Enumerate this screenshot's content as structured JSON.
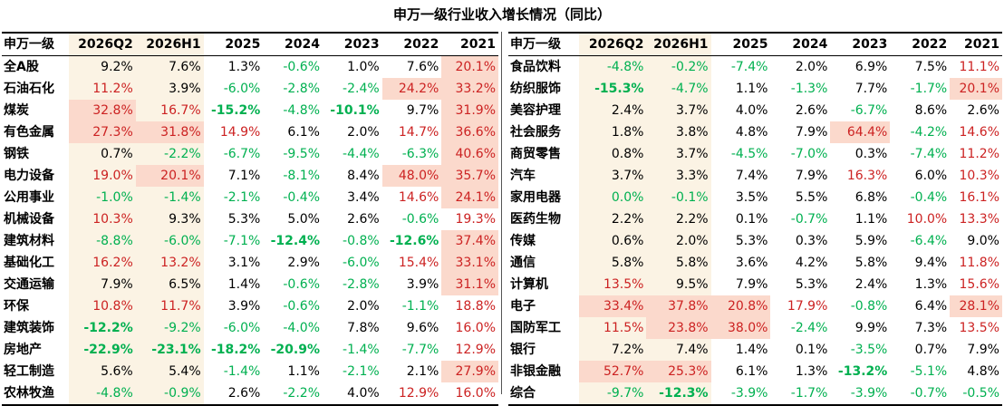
{
  "title": "申万一级行业收入增长情况（同比）",
  "headers": [
    "申万一级",
    "2026Q2",
    "2026H1",
    "2025",
    "2024",
    "2023",
    "2022",
    "2021"
  ],
  "left_rows": [
    {
      "name": "全A股",
      "vals": [
        "9.2%",
        "7.6%",
        "1.3%",
        "-0.6%",
        "1.0%",
        "7.6%",
        "20.1%"
      ],
      "colors": [
        "k",
        "k",
        "k",
        "g",
        "k",
        "k",
        "r"
      ],
      "bold": [
        0,
        0,
        0,
        0,
        0,
        0,
        0
      ],
      "hl": [
        0,
        0,
        0,
        0,
        0,
        0,
        1
      ]
    },
    {
      "name": "石油石化",
      "vals": [
        "11.2%",
        "3.9%",
        "-6.0%",
        "-2.8%",
        "-2.4%",
        "24.2%",
        "33.2%"
      ],
      "colors": [
        "r",
        "k",
        "g",
        "g",
        "g",
        "r",
        "r"
      ],
      "bold": [
        0,
        0,
        0,
        0,
        0,
        0,
        0
      ],
      "hl": [
        0,
        0,
        0,
        0,
        0,
        1,
        1
      ]
    },
    {
      "name": "煤炭",
      "vals": [
        "32.8%",
        "16.7%",
        "-15.2%",
        "-4.8%",
        "-10.1%",
        "9.7%",
        "31.9%"
      ],
      "colors": [
        "r",
        "r",
        "g",
        "g",
        "g",
        "k",
        "r"
      ],
      "bold": [
        0,
        0,
        1,
        0,
        1,
        0,
        0
      ],
      "hl": [
        1,
        0,
        0,
        0,
        0,
        0,
        1
      ]
    },
    {
      "name": "有色金属",
      "vals": [
        "27.3%",
        "31.8%",
        "14.9%",
        "6.1%",
        "2.0%",
        "14.7%",
        "36.6%"
      ],
      "colors": [
        "r",
        "r",
        "r",
        "k",
        "k",
        "r",
        "r"
      ],
      "bold": [
        0,
        0,
        0,
        0,
        0,
        0,
        0
      ],
      "hl": [
        1,
        1,
        0,
        0,
        0,
        0,
        1
      ]
    },
    {
      "name": "钢铁",
      "vals": [
        "0.7%",
        "-2.2%",
        "-6.7%",
        "-9.5%",
        "-4.4%",
        "-6.3%",
        "40.6%"
      ],
      "colors": [
        "k",
        "g",
        "g",
        "g",
        "g",
        "g",
        "r"
      ],
      "bold": [
        0,
        0,
        0,
        0,
        0,
        0,
        0
      ],
      "hl": [
        0,
        0,
        0,
        0,
        0,
        0,
        1
      ]
    },
    {
      "name": "电力设备",
      "vals": [
        "19.0%",
        "20.1%",
        "7.1%",
        "-8.1%",
        "8.4%",
        "48.0%",
        "35.7%"
      ],
      "colors": [
        "r",
        "r",
        "k",
        "g",
        "k",
        "r",
        "r"
      ],
      "bold": [
        0,
        0,
        0,
        0,
        0,
        0,
        0
      ],
      "hl": [
        0,
        1,
        0,
        0,
        0,
        1,
        1
      ]
    },
    {
      "name": "公用事业",
      "vals": [
        "-1.0%",
        "-1.4%",
        "-2.1%",
        "-0.4%",
        "3.4%",
        "14.6%",
        "24.1%"
      ],
      "colors": [
        "g",
        "g",
        "g",
        "g",
        "k",
        "r",
        "r"
      ],
      "bold": [
        0,
        0,
        0,
        0,
        0,
        0,
        0
      ],
      "hl": [
        0,
        0,
        0,
        0,
        0,
        0,
        1
      ]
    },
    {
      "name": "机械设备",
      "vals": [
        "10.3%",
        "9.3%",
        "5.3%",
        "5.0%",
        "2.6%",
        "-0.6%",
        "19.3%"
      ],
      "colors": [
        "r",
        "k",
        "k",
        "k",
        "k",
        "g",
        "r"
      ],
      "bold": [
        0,
        0,
        0,
        0,
        0,
        0,
        0
      ],
      "hl": [
        0,
        0,
        0,
        0,
        0,
        0,
        0
      ]
    },
    {
      "name": "建筑材料",
      "vals": [
        "-8.8%",
        "-6.0%",
        "-7.1%",
        "-12.4%",
        "-0.8%",
        "-12.6%",
        "37.4%"
      ],
      "colors": [
        "g",
        "g",
        "g",
        "g",
        "g",
        "g",
        "r"
      ],
      "bold": [
        0,
        0,
        0,
        1,
        0,
        1,
        0
      ],
      "hl": [
        0,
        0,
        0,
        0,
        0,
        0,
        1
      ]
    },
    {
      "name": "基础化工",
      "vals": [
        "16.2%",
        "13.2%",
        "3.1%",
        "2.9%",
        "-6.0%",
        "15.4%",
        "33.1%"
      ],
      "colors": [
        "r",
        "r",
        "k",
        "k",
        "g",
        "r",
        "r"
      ],
      "bold": [
        0,
        0,
        0,
        0,
        0,
        0,
        0
      ],
      "hl": [
        0,
        0,
        0,
        0,
        0,
        0,
        1
      ]
    },
    {
      "name": "交通运输",
      "vals": [
        "7.9%",
        "6.5%",
        "1.4%",
        "-0.6%",
        "-2.8%",
        "3.9%",
        "31.1%"
      ],
      "colors": [
        "k",
        "k",
        "k",
        "g",
        "g",
        "k",
        "r"
      ],
      "bold": [
        0,
        0,
        0,
        0,
        0,
        0,
        0
      ],
      "hl": [
        0,
        0,
        0,
        0,
        0,
        0,
        1
      ]
    },
    {
      "name": "环保",
      "vals": [
        "10.8%",
        "11.7%",
        "3.9%",
        "-0.6%",
        "2.0%",
        "-1.1%",
        "18.8%"
      ],
      "colors": [
        "r",
        "r",
        "k",
        "g",
        "k",
        "g",
        "r"
      ],
      "bold": [
        0,
        0,
        0,
        0,
        0,
        0,
        0
      ],
      "hl": [
        0,
        0,
        0,
        0,
        0,
        0,
        0
      ]
    },
    {
      "name": "建筑装饰",
      "vals": [
        "-12.2%",
        "-9.2%",
        "-6.0%",
        "-4.0%",
        "7.8%",
        "9.6%",
        "16.0%"
      ],
      "colors": [
        "g",
        "g",
        "g",
        "g",
        "k",
        "k",
        "r"
      ],
      "bold": [
        1,
        0,
        0,
        0,
        0,
        0,
        0
      ],
      "hl": [
        0,
        0,
        0,
        0,
        0,
        0,
        0
      ]
    },
    {
      "name": "房地产",
      "vals": [
        "-22.9%",
        "-23.1%",
        "-18.2%",
        "-20.9%",
        "-1.4%",
        "-7.7%",
        "12.9%"
      ],
      "colors": [
        "g",
        "g",
        "g",
        "g",
        "g",
        "g",
        "r"
      ],
      "bold": [
        1,
        1,
        1,
        1,
        0,
        0,
        0
      ],
      "hl": [
        0,
        0,
        0,
        0,
        0,
        0,
        0
      ]
    },
    {
      "name": "轻工制造",
      "vals": [
        "5.6%",
        "5.4%",
        "-1.4%",
        "1.1%",
        "-2.1%",
        "2.1%",
        "27.9%"
      ],
      "colors": [
        "k",
        "k",
        "g",
        "k",
        "g",
        "k",
        "r"
      ],
      "bold": [
        0,
        0,
        0,
        0,
        0,
        0,
        0
      ],
      "hl": [
        0,
        0,
        0,
        0,
        0,
        0,
        1
      ]
    },
    {
      "name": "农林牧渔",
      "vals": [
        "-4.8%",
        "-0.9%",
        "2.6%",
        "-2.2%",
        "4.0%",
        "12.9%",
        "16.0%"
      ],
      "colors": [
        "g",
        "g",
        "k",
        "g",
        "k",
        "r",
        "r"
      ],
      "bold": [
        0,
        0,
        0,
        0,
        0,
        0,
        0
      ],
      "hl": [
        0,
        0,
        0,
        0,
        0,
        0,
        0
      ]
    }
  ],
  "right_rows": [
    {
      "name": "食品饮料",
      "vals": [
        "-4.8%",
        "-0.2%",
        "-7.4%",
        "2.0%",
        "6.9%",
        "7.5%",
        "11.1%"
      ],
      "colors": [
        "g",
        "g",
        "g",
        "k",
        "k",
        "k",
        "r"
      ],
      "bold": [
        0,
        0,
        0,
        0,
        0,
        0,
        0
      ],
      "hl": [
        0,
        0,
        0,
        0,
        0,
        0,
        0
      ]
    },
    {
      "name": "纺织服饰",
      "vals": [
        "-15.3%",
        "-4.7%",
        "1.1%",
        "-1.3%",
        "7.7%",
        "-1.7%",
        "20.1%"
      ],
      "colors": [
        "g",
        "g",
        "k",
        "g",
        "k",
        "g",
        "r"
      ],
      "bold": [
        1,
        0,
        0,
        0,
        0,
        0,
        0
      ],
      "hl": [
        0,
        0,
        0,
        0,
        0,
        0,
        1
      ]
    },
    {
      "name": "美容护理",
      "vals": [
        "2.4%",
        "3.7%",
        "4.0%",
        "2.6%",
        "-6.7%",
        "8.6%",
        "2.6%"
      ],
      "colors": [
        "k",
        "k",
        "k",
        "k",
        "g",
        "k",
        "k"
      ],
      "bold": [
        0,
        0,
        0,
        0,
        0,
        0,
        0
      ],
      "hl": [
        0,
        0,
        0,
        0,
        0,
        0,
        0
      ]
    },
    {
      "name": "社会服务",
      "vals": [
        "1.8%",
        "3.8%",
        "4.8%",
        "7.9%",
        "64.4%",
        "-4.2%",
        "14.6%"
      ],
      "colors": [
        "k",
        "k",
        "k",
        "k",
        "r",
        "g",
        "r"
      ],
      "bold": [
        0,
        0,
        0,
        0,
        0,
        0,
        0
      ],
      "hl": [
        0,
        0,
        0,
        0,
        1,
        0,
        0
      ]
    },
    {
      "name": "商贸零售",
      "vals": [
        "0.8%",
        "3.7%",
        "-4.5%",
        "-7.0%",
        "0.3%",
        "-7.4%",
        "11.2%"
      ],
      "colors": [
        "k",
        "k",
        "g",
        "g",
        "k",
        "g",
        "r"
      ],
      "bold": [
        0,
        0,
        0,
        0,
        0,
        0,
        0
      ],
      "hl": [
        0,
        0,
        0,
        0,
        0,
        0,
        0
      ]
    },
    {
      "name": "汽车",
      "vals": [
        "3.7%",
        "3.3%",
        "7.4%",
        "7.9%",
        "16.3%",
        "6.0%",
        "10.3%"
      ],
      "colors": [
        "k",
        "k",
        "k",
        "k",
        "r",
        "k",
        "r"
      ],
      "bold": [
        0,
        0,
        0,
        0,
        0,
        0,
        0
      ],
      "hl": [
        0,
        0,
        0,
        0,
        0,
        0,
        0
      ]
    },
    {
      "name": "家用电器",
      "vals": [
        "0.0%",
        "-0.1%",
        "3.5%",
        "5.5%",
        "6.8%",
        "-0.4%",
        "16.1%"
      ],
      "colors": [
        "g",
        "g",
        "k",
        "k",
        "k",
        "g",
        "r"
      ],
      "bold": [
        0,
        0,
        0,
        0,
        0,
        0,
        0
      ],
      "hl": [
        0,
        0,
        0,
        0,
        0,
        0,
        0
      ]
    },
    {
      "name": "医药生物",
      "vals": [
        "2.2%",
        "2.2%",
        "0.1%",
        "-0.7%",
        "1.1%",
        "10.0%",
        "13.3%"
      ],
      "colors": [
        "k",
        "k",
        "k",
        "g",
        "k",
        "r",
        "r"
      ],
      "bold": [
        0,
        0,
        0,
        0,
        0,
        0,
        0
      ],
      "hl": [
        0,
        0,
        0,
        0,
        0,
        0,
        0
      ]
    },
    {
      "name": "传媒",
      "vals": [
        "0.6%",
        "2.0%",
        "5.3%",
        "0.3%",
        "5.9%",
        "-6.4%",
        "9.0%"
      ],
      "colors": [
        "k",
        "k",
        "k",
        "k",
        "k",
        "g",
        "k"
      ],
      "bold": [
        0,
        0,
        0,
        0,
        0,
        0,
        0
      ],
      "hl": [
        0,
        0,
        0,
        0,
        0,
        0,
        0
      ]
    },
    {
      "name": "通信",
      "vals": [
        "5.8%",
        "5.8%",
        "3.6%",
        "4.2%",
        "5.8%",
        "9.4%",
        "11.8%"
      ],
      "colors": [
        "k",
        "k",
        "k",
        "k",
        "k",
        "k",
        "r"
      ],
      "bold": [
        0,
        0,
        0,
        0,
        0,
        0,
        0
      ],
      "hl": [
        0,
        0,
        0,
        0,
        0,
        0,
        0
      ]
    },
    {
      "name": "计算机",
      "vals": [
        "13.5%",
        "9.5%",
        "7.9%",
        "5.3%",
        "2.4%",
        "1.3%",
        "15.6%"
      ],
      "colors": [
        "r",
        "k",
        "k",
        "k",
        "k",
        "k",
        "r"
      ],
      "bold": [
        0,
        0,
        0,
        0,
        0,
        0,
        0
      ],
      "hl": [
        0,
        0,
        0,
        0,
        0,
        0,
        0
      ]
    },
    {
      "name": "电子",
      "vals": [
        "33.4%",
        "37.8%",
        "20.8%",
        "17.9%",
        "-0.8%",
        "6.4%",
        "28.1%"
      ],
      "colors": [
        "r",
        "r",
        "r",
        "r",
        "g",
        "k",
        "r"
      ],
      "bold": [
        0,
        0,
        0,
        0,
        0,
        0,
        0
      ],
      "hl": [
        1,
        1,
        1,
        0,
        0,
        0,
        1
      ]
    },
    {
      "name": "国防军工",
      "vals": [
        "11.5%",
        "23.8%",
        "38.0%",
        "-2.4%",
        "9.9%",
        "7.3%",
        "13.5%"
      ],
      "colors": [
        "r",
        "r",
        "r",
        "g",
        "k",
        "k",
        "r"
      ],
      "bold": [
        0,
        0,
        0,
        0,
        0,
        0,
        0
      ],
      "hl": [
        0,
        1,
        1,
        0,
        0,
        0,
        0
      ]
    },
    {
      "name": "银行",
      "vals": [
        "7.2%",
        "7.4%",
        "1.4%",
        "0.1%",
        "-3.5%",
        "0.7%",
        "7.9%"
      ],
      "colors": [
        "k",
        "k",
        "k",
        "k",
        "g",
        "k",
        "k"
      ],
      "bold": [
        0,
        0,
        0,
        0,
        0,
        0,
        0
      ],
      "hl": [
        0,
        0,
        0,
        0,
        0,
        0,
        0
      ]
    },
    {
      "name": "非银金融",
      "vals": [
        "52.7%",
        "25.3%",
        "6.1%",
        "1.3%",
        "-13.2%",
        "-5.1%",
        "4.8%"
      ],
      "colors": [
        "r",
        "r",
        "k",
        "k",
        "g",
        "g",
        "k"
      ],
      "bold": [
        0,
        0,
        0,
        0,
        1,
        0,
        0
      ],
      "hl": [
        1,
        1,
        0,
        0,
        0,
        0,
        0
      ]
    },
    {
      "name": "综合",
      "vals": [
        "-9.7%",
        "-12.3%",
        "-3.9%",
        "-1.7%",
        "-3.9%",
        "-0.7%",
        "-0.5%"
      ],
      "colors": [
        "g",
        "g",
        "g",
        "g",
        "g",
        "g",
        "g"
      ],
      "bold": [
        0,
        1,
        0,
        0,
        0,
        0,
        0
      ],
      "hl": [
        0,
        0,
        0,
        0,
        0,
        0,
        0
      ]
    }
  ]
}
